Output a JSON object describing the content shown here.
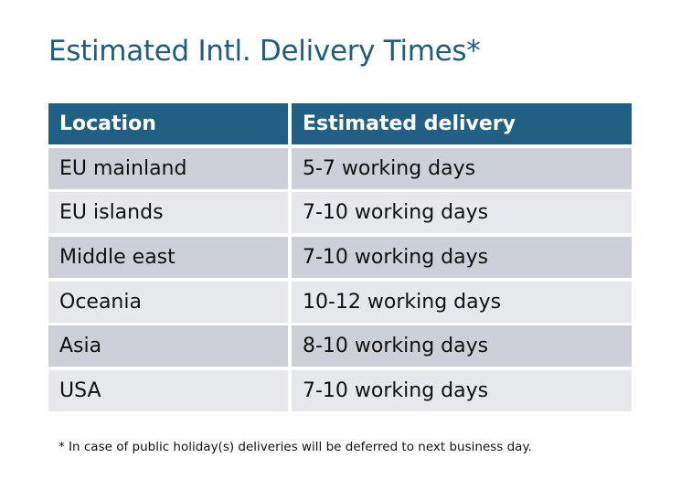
{
  "title": "Estimated Intl. Delivery Times*",
  "table": {
    "headers": [
      "Location",
      "Estimated delivery"
    ],
    "rows": [
      [
        "EU mainland",
        "5-7 working days"
      ],
      [
        "EU islands",
        "7-10 working days"
      ],
      [
        "Middle east",
        "7-10 working days"
      ],
      [
        "Oceania",
        "10-12 working days"
      ],
      [
        "Asia",
        "8-10 working days"
      ],
      [
        "USA",
        "7-10 working days"
      ]
    ]
  },
  "footnote": "* In case of public holiday(s) deliveries will be deferred to next business day.",
  "colors": {
    "header_bg": "#216082",
    "title": "#1f5e7e",
    "row_dark": "#cdd1d7",
    "row_light": "#e6e8eb"
  }
}
